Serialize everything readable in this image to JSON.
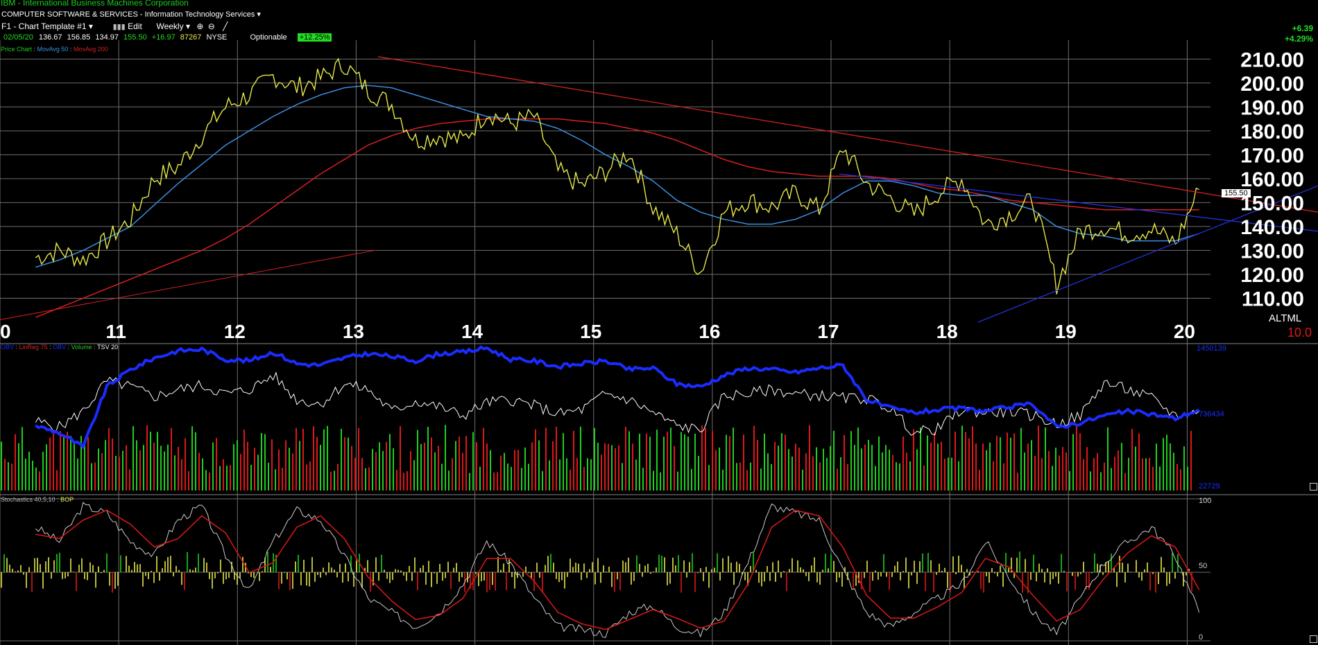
{
  "header": {
    "symbol_line": "IBM - International Business Machines Corporation",
    "sector": "COMPUTER SOFTWARE & SERVICES - Information Technology Services",
    "template": "F1 - Chart Template #1",
    "edit": "Edit",
    "period": "Weekly",
    "date": "02/05/20",
    "open": "136.67",
    "high": "156.85",
    "low": "134.97",
    "close": "155.50",
    "change": "+16.97",
    "volume": "87267",
    "exchange": "NYSE",
    "optionable": "Optionable",
    "pct_badge": "+12.25%",
    "right_change": "+6.39",
    "right_pct": "+4.29%"
  },
  "legends": {
    "price_chart": "Price Chart",
    "ma50": "MovAvg 50",
    "ma200": "MovAvg 200",
    "obv": "OBV",
    "linreg": "LinReg 75",
    "obv2": "OBV",
    "volume": "Volume",
    "tsv": "TSV 20",
    "stoch": "Stochastics 40,5,10",
    "bop": "BOP"
  },
  "labels": {
    "last_price": "155.50",
    "altml": "ALTML",
    "scale_val": "10.0",
    "obv_top": "1450139",
    "obv_mid": "736434",
    "obv_low": "22729",
    "stoch_100": "100",
    "stoch_50": "50",
    "stoch_0": "0"
  },
  "colors": {
    "background": "#000000",
    "price_up": "#1fd01f",
    "price_down": "#e01818",
    "price_base": "#e8e84a",
    "ma50": "#3b8fe0",
    "ma200": "#d82020",
    "obv": "#1a2cff",
    "tsv": "#ffffff",
    "grid": "#6e6e6e",
    "axis_text": "#ffffff",
    "badge": "#22dd22",
    "header_green": "#22cc22"
  },
  "chart_data": [
    {
      "type": "line",
      "panel": "price",
      "ylim": [
        100,
        215
      ],
      "y_ticks": [
        "210.00",
        "200.00",
        "190.00",
        "180.00",
        "170.00",
        "160.00",
        "150.00",
        "140.00",
        "130.00",
        "120.00",
        "110.00"
      ],
      "x_ticks": [
        "0",
        "11",
        "12",
        "13",
        "14",
        "15",
        "16",
        "17",
        "18",
        "19",
        "20"
      ],
      "x": [
        2010.3,
        2010.5,
        2010.7,
        2010.9,
        2011.1,
        2011.3,
        2011.5,
        2011.7,
        2011.9,
        2012.1,
        2012.3,
        2012.5,
        2012.7,
        2012.9,
        2013.1,
        2013.3,
        2013.5,
        2013.7,
        2013.9,
        2014.1,
        2014.3,
        2014.5,
        2014.7,
        2014.9,
        2015.1,
        2015.3,
        2015.5,
        2015.7,
        2015.9,
        2016.1,
        2016.3,
        2016.5,
        2016.7,
        2016.9,
        2017.1,
        2017.3,
        2017.5,
        2017.7,
        2017.9,
        2018.1,
        2018.3,
        2018.5,
        2018.7,
        2018.9,
        2019.1,
        2019.3,
        2019.5,
        2019.7,
        2019.9,
        2020.1
      ],
      "series": [
        {
          "values": [
            127,
            130,
            126,
            134,
            143,
            160,
            165,
            178,
            190,
            195,
            203,
            198,
            202,
            208,
            197,
            191,
            176,
            178,
            176,
            188,
            183,
            186,
            163,
            157,
            163,
            171,
            148,
            137,
            121,
            146,
            151,
            148,
            154,
            147,
            173,
            158,
            152,
            145,
            154,
            160,
            141,
            145,
            151,
            116,
            138,
            140,
            137,
            139,
            133,
            155.5
          ]
        },
        {
          "name": "MovAvg 50",
          "values": [
            123,
            126,
            130,
            135,
            140,
            149,
            158,
            166,
            174,
            180,
            186,
            191,
            195,
            198,
            199,
            198,
            195,
            192,
            189,
            186,
            185,
            184,
            181,
            176,
            170,
            165,
            159,
            151,
            146,
            143,
            141,
            141,
            143,
            147,
            154,
            159,
            159,
            157,
            154,
            153,
            153,
            150,
            147,
            140,
            137,
            136,
            134,
            134,
            134,
            137
          ]
        },
        {
          "name": "MovAvg 200",
          "values": [
            102,
            106,
            110,
            114,
            118,
            122,
            126,
            130,
            135,
            141,
            148,
            155,
            162,
            168,
            174,
            178,
            181,
            183,
            184,
            185,
            185,
            185,
            185,
            184,
            183,
            181,
            179,
            176,
            172,
            168,
            165,
            163,
            162,
            161,
            161,
            161,
            160,
            158,
            156,
            155,
            153,
            151,
            150,
            149,
            148,
            147,
            147,
            147,
            147,
            147
          ]
        }
      ]
    },
    {
      "type": "line",
      "panel": "volume",
      "series": [
        {
          "name": "OBV",
          "values": [
            45,
            40,
            30,
            72,
            84,
            92,
            97,
            98,
            91,
            90,
            96,
            88,
            87,
            92,
            95,
            93,
            90,
            95,
            96,
            99,
            91,
            90,
            86,
            88,
            90,
            84,
            85,
            74,
            72,
            80,
            85,
            84,
            82,
            85,
            87,
            63,
            57,
            54,
            56,
            57,
            55,
            58,
            60,
            44,
            47,
            52,
            55,
            53,
            50,
            56
          ]
        },
        {
          "name": "TSV 20",
          "values": [
            48,
            44,
            55,
            76,
            72,
            65,
            70,
            73,
            67,
            70,
            80,
            63,
            60,
            74,
            70,
            55,
            62,
            58,
            52,
            61,
            63,
            59,
            53,
            56,
            67,
            63,
            54,
            45,
            42,
            66,
            67,
            70,
            67,
            66,
            64,
            64,
            57,
            40,
            43,
            56,
            54,
            55,
            52,
            46,
            52,
            75,
            70,
            64,
            52,
            55
          ]
        }
      ]
    },
    {
      "type": "line",
      "panel": "stochastics",
      "ylim": [
        0,
        100
      ],
      "series": [
        {
          "name": "Stochastics 40,5,10",
          "values": [
            80,
            70,
            95,
            90,
            70,
            60,
            85,
            95,
            60,
            35,
            70,
            92,
            85,
            60,
            30,
            20,
            10,
            20,
            40,
            70,
            55,
            30,
            10,
            8,
            5,
            20,
            25,
            10,
            5,
            20,
            55,
            95,
            90,
            85,
            50,
            20,
            10,
            20,
            30,
            40,
            70,
            45,
            20,
            5,
            30,
            55,
            70,
            80,
            60,
            20
          ]
        },
        {
          "name": "Stochastics signal",
          "values": [
            75,
            72,
            85,
            92,
            82,
            66,
            72,
            88,
            76,
            48,
            55,
            80,
            88,
            72,
            45,
            28,
            15,
            18,
            30,
            58,
            58,
            42,
            20,
            12,
            8,
            15,
            22,
            16,
            9,
            14,
            40,
            80,
            92,
            88,
            66,
            32,
            16,
            16,
            24,
            34,
            58,
            52,
            32,
            14,
            22,
            44,
            62,
            74,
            66,
            36
          ]
        }
      ]
    }
  ]
}
